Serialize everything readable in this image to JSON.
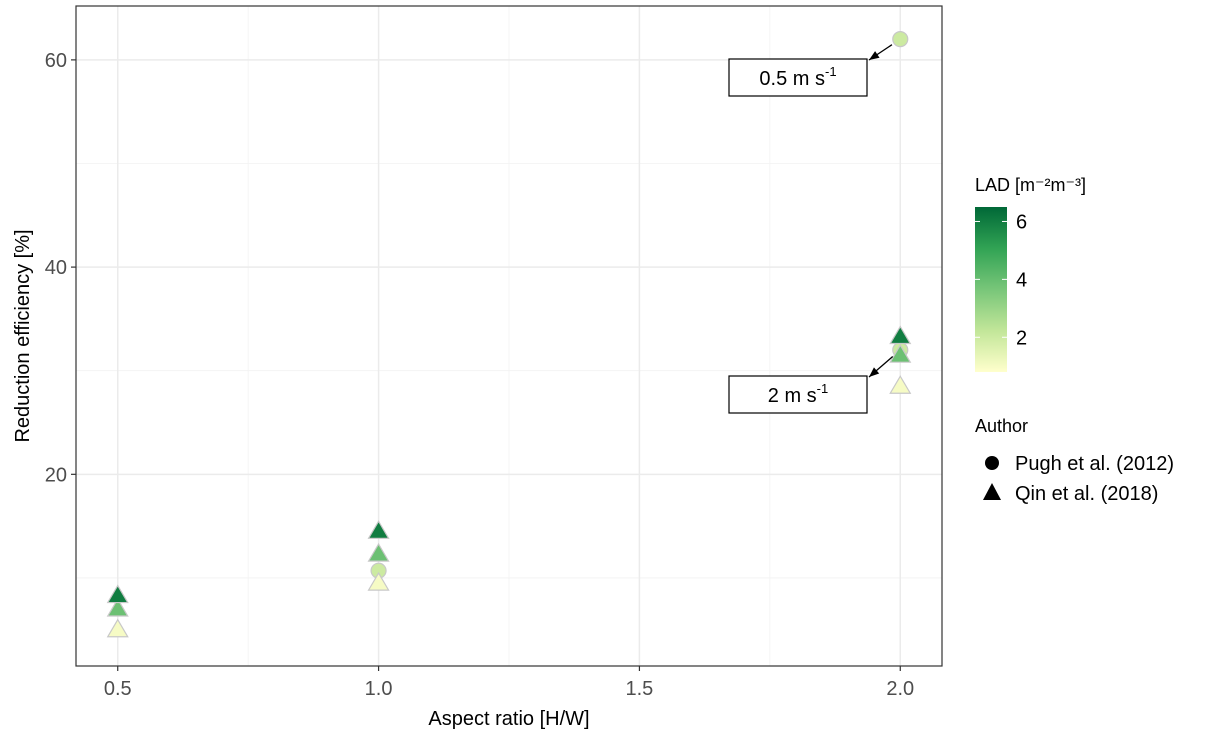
{
  "chart_data": {
    "type": "scatter",
    "xlabel": "Aspect ratio [H/W]",
    "ylabel": "Reduction efficiency [%]",
    "xlim": [
      0.42,
      2.08
    ],
    "ylim": [
      1.5,
      65.2
    ],
    "x_ticks": [
      0.5,
      1.0,
      1.5,
      2.0
    ],
    "x_tick_labels": [
      "0.5",
      "1.0",
      "1.5",
      "2.0"
    ],
    "y_ticks": [
      20,
      40,
      60
    ],
    "y_tick_labels": [
      "20",
      "40",
      "60"
    ],
    "grid": true,
    "color_scale": {
      "title": "LAD",
      "title_unit": "[m⁻²m⁻³]",
      "min": 0.8,
      "max": 6.5,
      "ticks": [
        2,
        4,
        6
      ],
      "tick_labels": [
        "2",
        "4",
        "6"
      ],
      "colors": [
        "#ffffcc",
        "#c2e699",
        "#78c679",
        "#31a354",
        "#006837"
      ]
    },
    "shape_legend": {
      "title": "Author",
      "placement": "right",
      "entries": [
        {
          "label": "Pugh et al. (2012)",
          "shape": "circle"
        },
        {
          "label": "Qin et al. (2018)",
          "shape": "triangle"
        }
      ]
    },
    "series": [
      {
        "name": "Pugh et al. (2012)",
        "shape": "circle",
        "points": [
          {
            "x": 1.0,
            "y": 10.7,
            "lad": 2.0
          },
          {
            "x": 2.0,
            "y": 62.0,
            "lad": 2.0
          },
          {
            "x": 2.0,
            "y": 32.0,
            "lad": 2.0
          }
        ]
      },
      {
        "name": "Qin et al. (2018)",
        "shape": "triangle",
        "points": [
          {
            "x": 0.5,
            "y": 5.0,
            "lad": 1.0
          },
          {
            "x": 0.5,
            "y": 7.0,
            "lad": 3.9
          },
          {
            "x": 0.5,
            "y": 8.3,
            "lad": 6.0
          },
          {
            "x": 1.0,
            "y": 9.5,
            "lad": 1.0
          },
          {
            "x": 1.0,
            "y": 12.3,
            "lad": 3.9
          },
          {
            "x": 1.0,
            "y": 14.5,
            "lad": 6.0
          },
          {
            "x": 2.0,
            "y": 28.5,
            "lad": 1.0
          },
          {
            "x": 2.0,
            "y": 31.5,
            "lad": 3.9
          },
          {
            "x": 2.0,
            "y": 33.3,
            "lad": 6.0
          }
        ]
      }
    ],
    "annotations": [
      {
        "text_main": "0.5 m s",
        "text_sup": "-1",
        "target_x": 2.0,
        "target_y": 62.0
      },
      {
        "text_main": "2 m s",
        "text_sup": "-1",
        "target_x": 2.0,
        "target_y": 32.0
      }
    ]
  }
}
